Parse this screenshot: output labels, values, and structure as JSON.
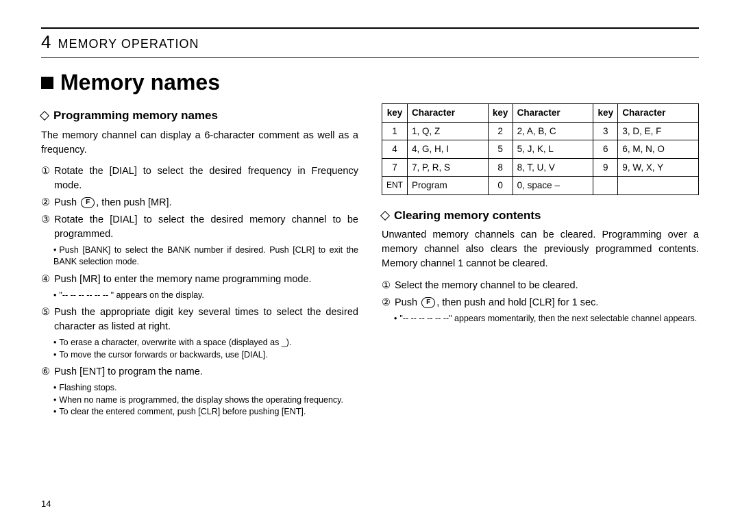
{
  "chapter": {
    "number": "4",
    "title": "MEMORY OPERATION"
  },
  "page_number": "14",
  "heading": "Memory names",
  "left": {
    "subheading": "Programming memory names",
    "intro": "The memory channel can display a 6-character comment as well as a frequency.",
    "steps": {
      "n1": "①",
      "s1": "Rotate the [DIAL] to select the desired frequency in Frequency mode.",
      "n2": "②",
      "s2a": "Push ",
      "s2_key": "F",
      "s2b": ", then push [MR].",
      "n3": "③",
      "s3": "Rotate the [DIAL] to select the desired memory channel to be programmed.",
      "s3_note1": "Push [BANK] to select the BANK number if desired. Push [CLR] to exit the BANK selection mode.",
      "n4": "④",
      "s4": "Push [MR] to enter the memory name programming mode.",
      "s4_note1": "\"-- -- -- -- -- -- \" appears on the display.",
      "n5": "⑤",
      "s5": "Push the appropriate digit key several times to select the desired character as listed at right.",
      "s5_note1": "To erase a character, overwrite with a space (displayed as _).",
      "s5_note2": "To move the cursor forwards or backwards, use [DIAL].",
      "n6": "⑥",
      "s6": "Push [ENT] to program the name.",
      "s6_note1": "Flashing stops.",
      "s6_note2": "When no name is programmed, the display shows the operating frequency.",
      "s6_note3": "To clear the entered comment, push [CLR] before pushing [ENT]."
    }
  },
  "right": {
    "table": {
      "headers": {
        "key": "key",
        "char": "Character"
      },
      "rows": [
        {
          "k1": "1",
          "c1": "1, Q, Z",
          "k2": "2",
          "c2": "2, A, B, C",
          "k3": "3",
          "c3": "3, D, E, F"
        },
        {
          "k1": "4",
          "c1": "4, G, H, I",
          "k2": "5",
          "c2": "5, J, K, L",
          "k3": "6",
          "c3": "6, M, N, O"
        },
        {
          "k1": "7",
          "c1": "7, P, R, S",
          "k2": "8",
          "c2": "8, T, U, V",
          "k3": "9",
          "c3": "9, W, X, Y"
        },
        {
          "k1": "ENT",
          "c1": "Program",
          "k2": "0",
          "c2": "0, space –",
          "k3": "",
          "c3": ""
        }
      ]
    },
    "subheading": "Clearing memory contents",
    "intro": "Unwanted memory channels can be cleared. Programming over a memory channel also clears the previously programmed contents. Memory channel 1 cannot be cleared.",
    "steps": {
      "n1": "①",
      "s1": "Select the memory channel to be cleared.",
      "n2": "②",
      "s2a": "Push ",
      "s2_key": "F",
      "s2b": ", then push and hold [CLR] for 1 sec.",
      "s2_note1": "\"-- -- -- -- -- --\" appears momentarily, then the next selectable channel appears."
    }
  }
}
